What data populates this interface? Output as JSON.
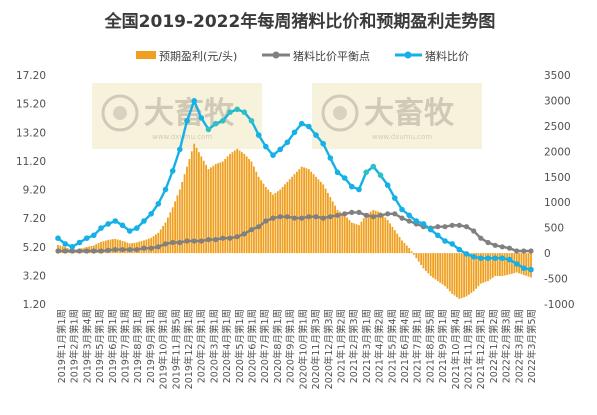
{
  "chart_data": {
    "type": "bar+line",
    "title": "全国2019-2022年每周猪料比价和预期盈利走势图",
    "legend": {
      "position": "top",
      "entries": [
        "预期盈利(元/头)",
        "猪料比价平衡点",
        "猪料比价"
      ]
    },
    "colors": {
      "bars": "#f0a020",
      "breakeven": "#808080",
      "ratio": "#15b0e6",
      "ratio_alt": "#30c0c0"
    },
    "y_left": {
      "range": [
        1.2,
        17.2
      ],
      "ticks": [
        "1.20",
        "3.20",
        "5.20",
        "7.20",
        "9.20",
        "11.20",
        "13.20",
        "15.20",
        "17.20"
      ]
    },
    "y_right": {
      "range": [
        -1000,
        3500
      ],
      "ticks": [
        "-1000",
        "-500",
        "0",
        "500",
        "1000",
        "1500",
        "2000",
        "2500",
        "3000",
        "3500"
      ]
    },
    "x_tick_labels": [
      "2019年1月第1周",
      "2019年2月第1周",
      "2019年3月第4周",
      "2019年5月第1周",
      "2019年6月第1周",
      "2019年7月第1周",
      "2019年8月第1周",
      "2019年9月第1周",
      "2019年10月第1周",
      "2019年11月第5周",
      "2019年12月第1周",
      "2020年2月第1周",
      "2020年3月第1周",
      "2020年4月第1周",
      "2020年5月第1周",
      "2020年6月第1周",
      "2020年7月第1周",
      "2020年8月第1周",
      "2020年9月第1周",
      "2020年10月第1周",
      "2020年11月第3周",
      "2020年12月第3周",
      "2021年1月第2周",
      "2021年2月第3周",
      "2021年3月第1周",
      "2021年4月第2周",
      "2021年5月第4周",
      "2021年6月第4周",
      "2021年7月第1周",
      "2021年8月第5周",
      "2021年9月第1周",
      "2021年10月第4周",
      "2021年11月第1周",
      "2021年12月第1周",
      "2022年1月第2周",
      "2022年2月第3周",
      "2022年3月第1周",
      "2022年3月第5周"
    ],
    "series": [
      {
        "name": "猪料比价",
        "axis": "left",
        "type": "line",
        "values": [
          5.8,
          5.4,
          5.2,
          5.5,
          5.8,
          6.0,
          6.5,
          6.8,
          7.0,
          6.7,
          6.3,
          6.5,
          7.0,
          7.5,
          8.2,
          9.2,
          10.5,
          12.0,
          14.0,
          15.4,
          14.2,
          13.4,
          13.8,
          14.0,
          14.6,
          14.8,
          14.6,
          14.0,
          13.0,
          12.2,
          11.6,
          12.0,
          12.5,
          13.2,
          13.8,
          13.6,
          13.0,
          12.4,
          11.4,
          10.4,
          10.0,
          9.4,
          9.2,
          10.4,
          10.8,
          10.2,
          9.5,
          8.6,
          7.8,
          7.4,
          7.0,
          6.8,
          6.4,
          6.0,
          5.6,
          5.4,
          5.0,
          4.7,
          4.5,
          4.4,
          4.4,
          4.4,
          4.4,
          4.3,
          4.0,
          3.7,
          3.6
        ]
      },
      {
        "name": "猪料比价平衡点",
        "axis": "left",
        "type": "line",
        "values": [
          4.9,
          4.9,
          4.9,
          4.9,
          4.9,
          4.9,
          4.9,
          4.95,
          5.0,
          5.0,
          5.0,
          5.0,
          5.1,
          5.1,
          5.2,
          5.4,
          5.5,
          5.5,
          5.6,
          5.6,
          5.6,
          5.7,
          5.7,
          5.8,
          5.8,
          5.9,
          6.1,
          6.4,
          6.6,
          7.0,
          7.2,
          7.3,
          7.3,
          7.2,
          7.2,
          7.3,
          7.3,
          7.2,
          7.3,
          7.4,
          7.5,
          7.6,
          7.6,
          7.4,
          7.3,
          7.4,
          7.5,
          7.5,
          7.2,
          7.0,
          6.8,
          6.6,
          6.5,
          6.6,
          6.6,
          6.7,
          6.7,
          6.6,
          6.3,
          5.8,
          5.5,
          5.3,
          5.2,
          5.1,
          4.9,
          4.9,
          4.9
        ]
      },
      {
        "name": "预期盈利(元/头)",
        "axis": "right",
        "type": "bar",
        "values": [
          160,
          120,
          60,
          80,
          120,
          150,
          220,
          260,
          280,
          240,
          190,
          210,
          250,
          300,
          400,
          600,
          900,
          1250,
          1700,
          2150,
          1900,
          1650,
          1750,
          1800,
          1950,
          2050,
          1950,
          1800,
          1500,
          1300,
          1150,
          1250,
          1400,
          1550,
          1700,
          1650,
          1500,
          1350,
          1100,
          850,
          750,
          600,
          550,
          750,
          850,
          800,
          650,
          450,
          250,
          100,
          -100,
          -300,
          -450,
          -550,
          -650,
          -800,
          -900,
          -850,
          -750,
          -600,
          -550,
          -450,
          -450,
          -420,
          -380,
          -430,
          -480
        ]
      }
    ]
  },
  "watermark": {
    "text": "大畜牧",
    "subtext": "www.dxumu.com"
  }
}
